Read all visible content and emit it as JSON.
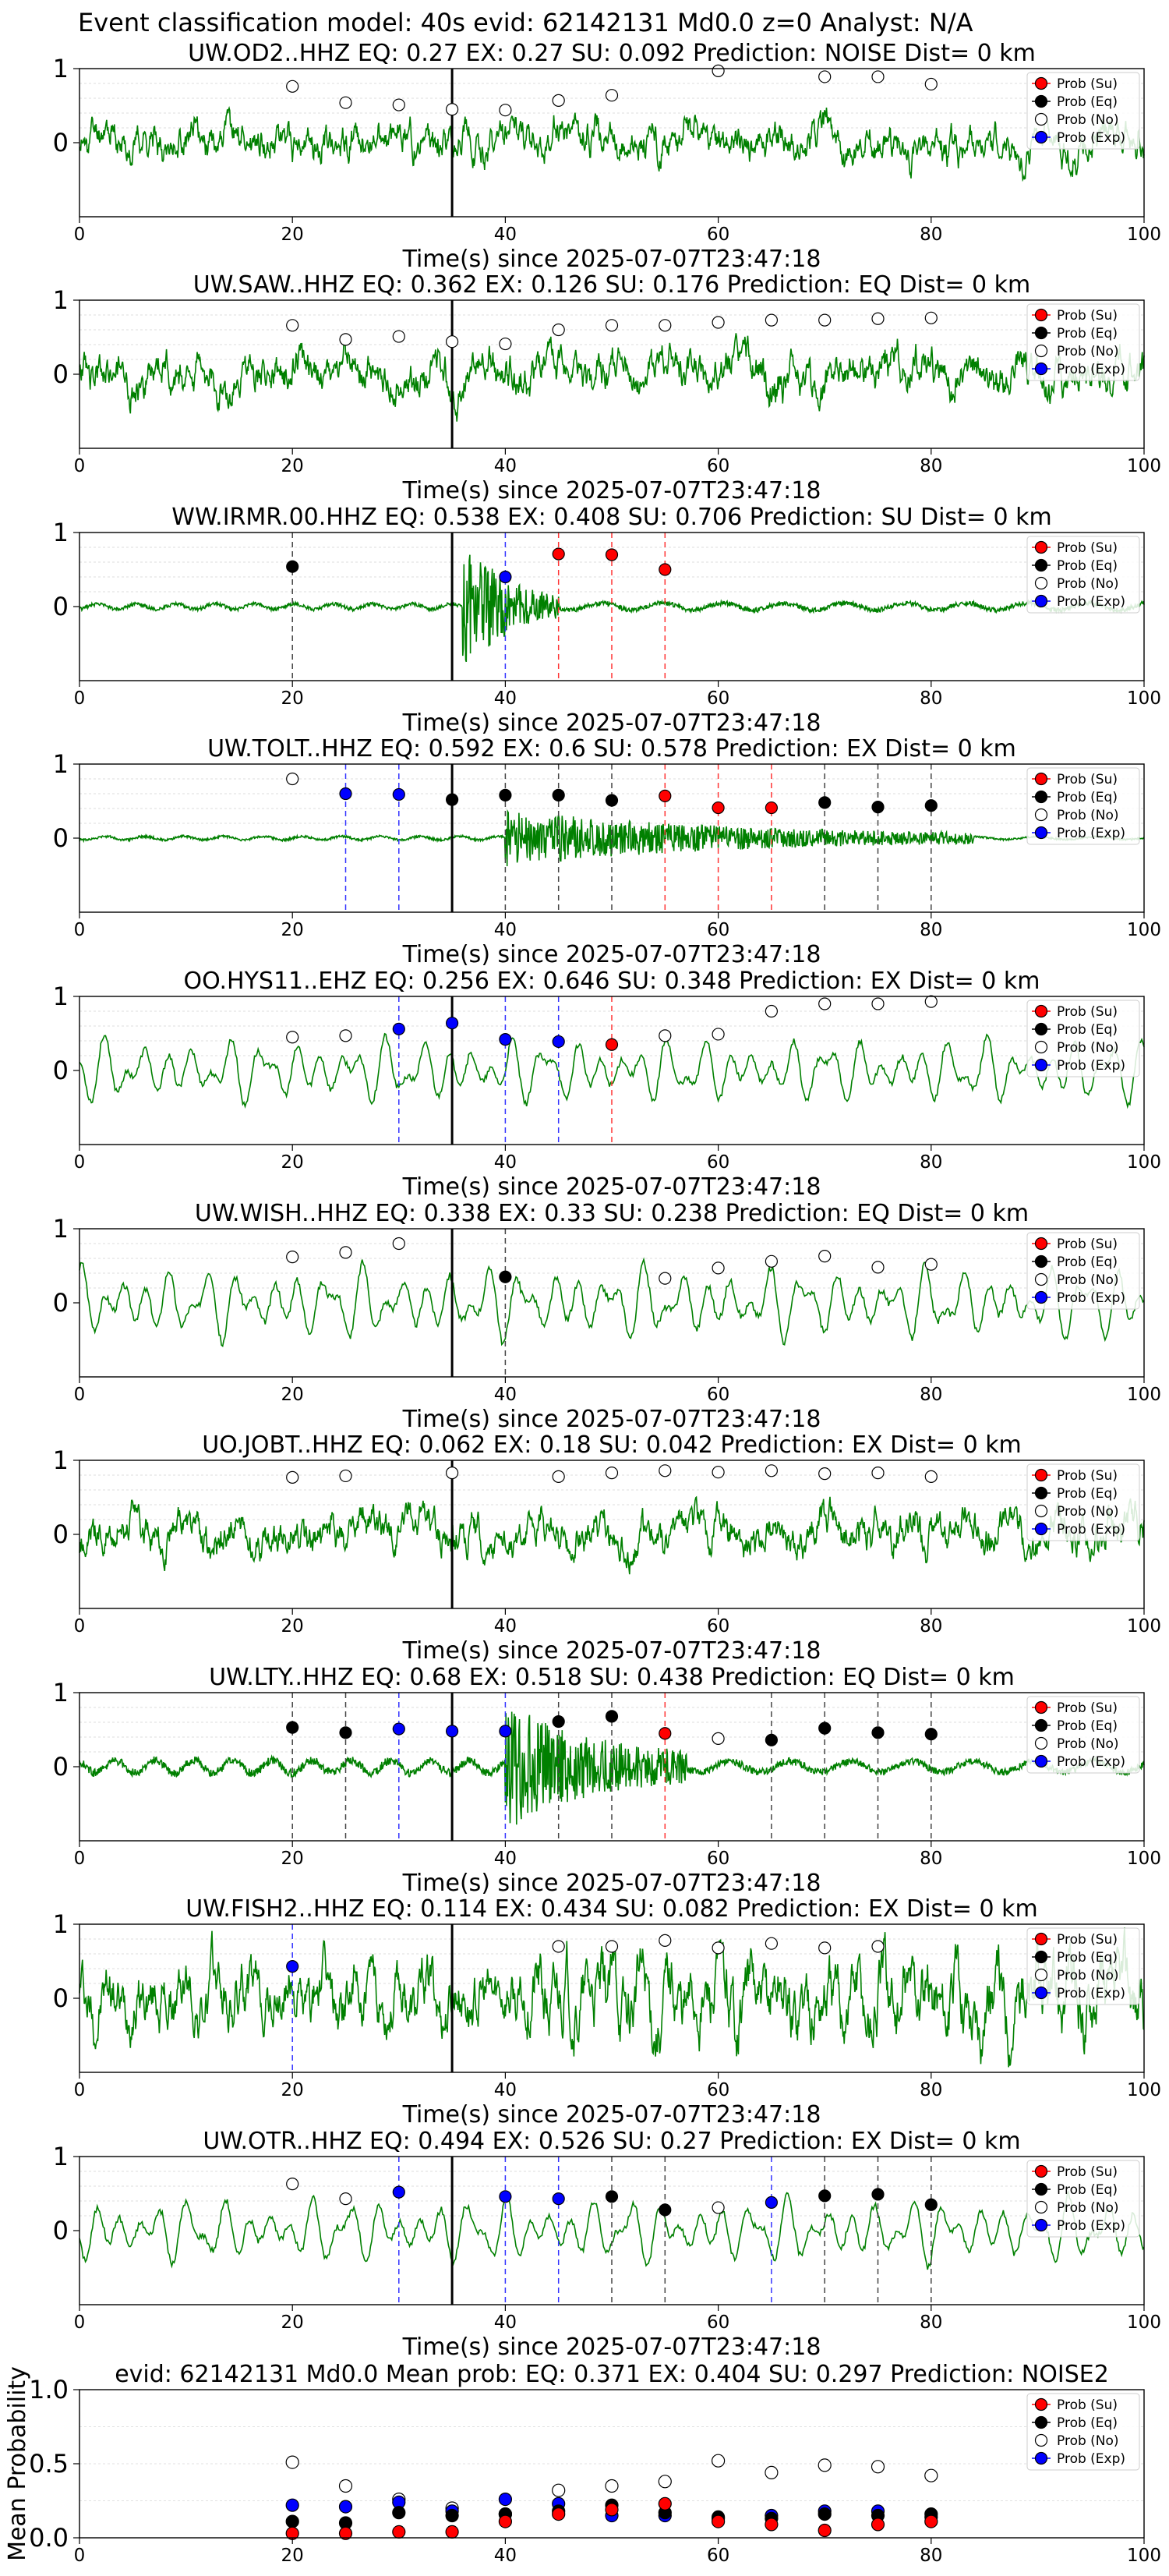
{
  "header": {
    "title": "Event classification model: 40s evid: 62142131 Md0.0 z=0 Analyst: N/A"
  },
  "legend_labels": [
    "Prob (Su)",
    "Prob (Eq)",
    "Prob (No)",
    "Prob (Exp)"
  ],
  "colors": {
    "su": "#ff0000",
    "eq": "#000000",
    "no": "#ffffff",
    "exp": "#0000ff",
    "wave": "#008000"
  },
  "chart_data": [
    {
      "type": "line",
      "title": "UW.OD2..HHZ   EQ: 0.27   EX: 0.27   SU: 0.092   Prediction: NOISE    Dist= 0 km",
      "xlabel": "Time(s) since 2025-07-07T23:47:18",
      "xlim": [
        0,
        100
      ],
      "ylim": [
        -1,
        1
      ],
      "xticks": [
        "0",
        "20",
        "40",
        "60",
        "80",
        "100"
      ],
      "yticks": [
        "1",
        "0"
      ],
      "onset_line": 35,
      "wave": {
        "amp": 0.38,
        "style": "noise",
        "seed": 11
      },
      "markers": [
        {
          "t": 20,
          "p": 0.76,
          "cls": "no"
        },
        {
          "t": 25,
          "p": 0.54,
          "cls": "no"
        },
        {
          "t": 30,
          "p": 0.51,
          "cls": "no"
        },
        {
          "t": 35,
          "p": 0.45,
          "cls": "no"
        },
        {
          "t": 40,
          "p": 0.44,
          "cls": "no"
        },
        {
          "t": 45,
          "p": 0.57,
          "cls": "no"
        },
        {
          "t": 50,
          "p": 0.64,
          "cls": "no"
        },
        {
          "t": 60,
          "p": 0.97,
          "cls": "no"
        },
        {
          "t": 70,
          "p": 0.89,
          "cls": "no"
        },
        {
          "t": 75,
          "p": 0.89,
          "cls": "no"
        },
        {
          "t": 80,
          "p": 0.79,
          "cls": "no"
        }
      ]
    },
    {
      "type": "line",
      "title": "UW.SAW..HHZ   EQ: 0.362  EX: 0.126  SU: 0.176   Prediction: EQ    Dist= 0 km",
      "xlabel": "Time(s) since 2025-07-07T23:47:18",
      "xlim": [
        0,
        100
      ],
      "ylim": [
        -1,
        1
      ],
      "xticks": [
        "0",
        "20",
        "40",
        "60",
        "80",
        "100"
      ],
      "yticks": [
        "1",
        "0"
      ],
      "onset_line": 35,
      "wave": {
        "amp": 0.42,
        "style": "noise",
        "seed": 23
      },
      "markers": [
        {
          "t": 20,
          "p": 0.66,
          "cls": "no"
        },
        {
          "t": 25,
          "p": 0.47,
          "cls": "no"
        },
        {
          "t": 30,
          "p": 0.51,
          "cls": "no"
        },
        {
          "t": 35,
          "p": 0.44,
          "cls": "no"
        },
        {
          "t": 40,
          "p": 0.41,
          "cls": "no"
        },
        {
          "t": 45,
          "p": 0.6,
          "cls": "no"
        },
        {
          "t": 50,
          "p": 0.66,
          "cls": "no"
        },
        {
          "t": 55,
          "p": 0.66,
          "cls": "no"
        },
        {
          "t": 60,
          "p": 0.7,
          "cls": "no"
        },
        {
          "t": 65,
          "p": 0.73,
          "cls": "no"
        },
        {
          "t": 70,
          "p": 0.73,
          "cls": "no"
        },
        {
          "t": 75,
          "p": 0.75,
          "cls": "no"
        },
        {
          "t": 80,
          "p": 0.76,
          "cls": "no"
        }
      ]
    },
    {
      "type": "line",
      "title": "WW.IRMR.00.HHZ   EQ: 0.538  EX: 0.408  SU: 0.706   Prediction: SU    Dist= 0 km",
      "xlabel": "Time(s) since 2025-07-07T23:47:18",
      "xlim": [
        0,
        100
      ],
      "ylim": [
        -1,
        1
      ],
      "xticks": [
        "0",
        "20",
        "40",
        "60",
        "80",
        "100"
      ],
      "yticks": [
        "1",
        "0"
      ],
      "onset_line": 35,
      "wave": {
        "amp": 0.06,
        "style": "burst",
        "seed": 37,
        "burst_start": 36,
        "burst_end": 45,
        "burst_amp": 0.9,
        "late_amp": 0.08
      },
      "markers": [
        {
          "t": 20,
          "p": 0.54,
          "cls": "eq",
          "vline": "eq"
        },
        {
          "t": 40,
          "p": 0.4,
          "cls": "exp",
          "vline": "exp"
        },
        {
          "t": 45,
          "p": 0.71,
          "cls": "su",
          "vline": "su"
        },
        {
          "t": 50,
          "p": 0.7,
          "cls": "su",
          "vline": "su"
        },
        {
          "t": 55,
          "p": 0.5,
          "cls": "su",
          "vline": "su"
        }
      ]
    },
    {
      "type": "line",
      "title": "UW.TOLT..HHZ   EQ: 0.592  EX: 0.6  SU: 0.578   Prediction: EX    Dist= 0 km",
      "xlabel": "Time(s) since 2025-07-07T23:47:18",
      "xlim": [
        0,
        100
      ],
      "ylim": [
        -1,
        1
      ],
      "xticks": [
        "0",
        "20",
        "40",
        "60",
        "80",
        "100"
      ],
      "yticks": [
        "1",
        "0"
      ],
      "onset_line": 35,
      "wave": {
        "amp": 0.04,
        "style": "burst",
        "seed": 41,
        "burst_start": 40,
        "burst_end": 84,
        "burst_amp": 0.35,
        "late_amp": 0.03
      },
      "markers": [
        {
          "t": 20,
          "p": 0.8,
          "cls": "no"
        },
        {
          "t": 25,
          "p": 0.6,
          "cls": "exp",
          "vline": "exp"
        },
        {
          "t": 30,
          "p": 0.59,
          "cls": "exp",
          "vline": "exp"
        },
        {
          "t": 35,
          "p": 0.52,
          "cls": "eq"
        },
        {
          "t": 40,
          "p": 0.58,
          "cls": "eq",
          "vline": "eq"
        },
        {
          "t": 45,
          "p": 0.58,
          "cls": "eq",
          "vline": "eq"
        },
        {
          "t": 50,
          "p": 0.51,
          "cls": "eq",
          "vline": "eq"
        },
        {
          "t": 55,
          "p": 0.57,
          "cls": "su",
          "vline": "su"
        },
        {
          "t": 60,
          "p": 0.41,
          "cls": "su",
          "vline": "su"
        },
        {
          "t": 65,
          "p": 0.41,
          "cls": "su",
          "vline": "su"
        },
        {
          "t": 70,
          "p": 0.48,
          "cls": "eq",
          "vline": "eq"
        },
        {
          "t": 75,
          "p": 0.42,
          "cls": "eq",
          "vline": "eq"
        },
        {
          "t": 80,
          "p": 0.44,
          "cls": "eq",
          "vline": "eq"
        }
      ]
    },
    {
      "type": "line",
      "title": "OO.HYS11..EHZ   EQ: 0.256  EX: 0.646  SU: 0.348   Prediction: EX    Dist= 0 km",
      "xlabel": "Time(s) since 2025-07-07T23:47:18",
      "xlim": [
        0,
        100
      ],
      "ylim": [
        -1,
        1
      ],
      "xticks": [
        "0",
        "20",
        "40",
        "60",
        "80",
        "100"
      ],
      "yticks": [
        "1",
        "0"
      ],
      "onset_line": 35,
      "wave": {
        "amp": 0.55,
        "style": "smooth",
        "seed": 53
      },
      "markers": [
        {
          "t": 20,
          "p": 0.45,
          "cls": "no"
        },
        {
          "t": 25,
          "p": 0.47,
          "cls": "no"
        },
        {
          "t": 30,
          "p": 0.56,
          "cls": "exp",
          "vline": "exp"
        },
        {
          "t": 35,
          "p": 0.64,
          "cls": "exp"
        },
        {
          "t": 40,
          "p": 0.42,
          "cls": "exp",
          "vline": "exp"
        },
        {
          "t": 45,
          "p": 0.39,
          "cls": "exp",
          "vline": "exp"
        },
        {
          "t": 50,
          "p": 0.35,
          "cls": "su",
          "vline": "su"
        },
        {
          "t": 55,
          "p": 0.47,
          "cls": "no"
        },
        {
          "t": 60,
          "p": 0.49,
          "cls": "no"
        },
        {
          "t": 65,
          "p": 0.8,
          "cls": "no"
        },
        {
          "t": 70,
          "p": 0.9,
          "cls": "no"
        },
        {
          "t": 75,
          "p": 0.9,
          "cls": "no"
        },
        {
          "t": 80,
          "p": 0.93,
          "cls": "no"
        }
      ]
    },
    {
      "type": "line",
      "title": "UW.WISH..HHZ   EQ: 0.338  EX: 0.33  SU: 0.238   Prediction: EQ    Dist= 0 km",
      "xlabel": "Time(s) since 2025-07-07T23:47:18",
      "xlim": [
        0,
        100
      ],
      "ylim": [
        -1,
        1
      ],
      "xticks": [
        "0",
        "20",
        "40",
        "60",
        "80",
        "100"
      ],
      "yticks": [
        "1",
        "0"
      ],
      "onset_line": 35,
      "wave": {
        "amp": 0.62,
        "style": "smooth",
        "seed": 67
      },
      "markers": [
        {
          "t": 20,
          "p": 0.62,
          "cls": "no"
        },
        {
          "t": 25,
          "p": 0.68,
          "cls": "no"
        },
        {
          "t": 30,
          "p": 0.8,
          "cls": "no"
        },
        {
          "t": 40,
          "p": 0.35,
          "cls": "eq",
          "vline": "eq"
        },
        {
          "t": 55,
          "p": 0.33,
          "cls": "no"
        },
        {
          "t": 60,
          "p": 0.47,
          "cls": "no"
        },
        {
          "t": 65,
          "p": 0.56,
          "cls": "no"
        },
        {
          "t": 70,
          "p": 0.63,
          "cls": "no"
        },
        {
          "t": 75,
          "p": 0.48,
          "cls": "no"
        },
        {
          "t": 80,
          "p": 0.52,
          "cls": "no"
        }
      ]
    },
    {
      "type": "line",
      "title": "UO.JOBT..HHZ   EQ: 0.062  EX: 0.18  SU: 0.042   Prediction: EX    Dist= 0 km",
      "xlabel": "Time(s) since 2025-07-07T23:47:18",
      "xlim": [
        0,
        100
      ],
      "ylim": [
        -1,
        1
      ],
      "xticks": [
        "0",
        "20",
        "40",
        "60",
        "80",
        "100"
      ],
      "yticks": [
        "1",
        "0"
      ],
      "onset_line": 35,
      "wave": {
        "amp": 0.4,
        "style": "noise",
        "seed": 79
      },
      "markers": [
        {
          "t": 20,
          "p": 0.77,
          "cls": "no"
        },
        {
          "t": 25,
          "p": 0.79,
          "cls": "no"
        },
        {
          "t": 35,
          "p": 0.83,
          "cls": "no"
        },
        {
          "t": 45,
          "p": 0.78,
          "cls": "no"
        },
        {
          "t": 50,
          "p": 0.83,
          "cls": "no"
        },
        {
          "t": 55,
          "p": 0.86,
          "cls": "no"
        },
        {
          "t": 60,
          "p": 0.84,
          "cls": "no"
        },
        {
          "t": 65,
          "p": 0.86,
          "cls": "no"
        },
        {
          "t": 70,
          "p": 0.82,
          "cls": "no"
        },
        {
          "t": 75,
          "p": 0.83,
          "cls": "no"
        },
        {
          "t": 80,
          "p": 0.78,
          "cls": "no"
        }
      ]
    },
    {
      "type": "line",
      "title": "UW.LTY..HHZ   EQ: 0.68  EX: 0.518  SU: 0.438   Prediction: EQ    Dist= 0 km",
      "xlabel": "Time(s) since 2025-07-07T23:47:18",
      "xlim": [
        0,
        100
      ],
      "ylim": [
        -1,
        1
      ],
      "xticks": [
        "0",
        "20",
        "40",
        "60",
        "80",
        "100"
      ],
      "yticks": [
        "1",
        "0"
      ],
      "onset_line": 35,
      "wave": {
        "amp": 0.14,
        "style": "burst",
        "seed": 83,
        "burst_start": 40,
        "burst_end": 57,
        "burst_amp": 0.75,
        "late_amp": 0.12
      },
      "markers": [
        {
          "t": 20,
          "p": 0.53,
          "cls": "eq",
          "vline": "eq"
        },
        {
          "t": 25,
          "p": 0.46,
          "cls": "eq",
          "vline": "eq"
        },
        {
          "t": 30,
          "p": 0.51,
          "cls": "exp",
          "vline": "exp"
        },
        {
          "t": 35,
          "p": 0.48,
          "cls": "exp"
        },
        {
          "t": 40,
          "p": 0.48,
          "cls": "exp",
          "vline": "exp"
        },
        {
          "t": 45,
          "p": 0.61,
          "cls": "eq",
          "vline": "eq"
        },
        {
          "t": 50,
          "p": 0.68,
          "cls": "eq",
          "vline": "eq"
        },
        {
          "t": 55,
          "p": 0.45,
          "cls": "su",
          "vline": "su"
        },
        {
          "t": 60,
          "p": 0.38,
          "cls": "no"
        },
        {
          "t": 65,
          "p": 0.36,
          "cls": "eq",
          "vline": "eq"
        },
        {
          "t": 70,
          "p": 0.52,
          "cls": "eq",
          "vline": "eq"
        },
        {
          "t": 75,
          "p": 0.46,
          "cls": "eq",
          "vline": "eq"
        },
        {
          "t": 80,
          "p": 0.44,
          "cls": "eq",
          "vline": "eq"
        }
      ]
    },
    {
      "type": "line",
      "title": "UW.FISH2..HHZ   EQ: 0.114  EX: 0.434  SU: 0.082   Prediction: EX    Dist= 0 km",
      "xlabel": "Time(s) since 2025-07-07T23:47:18",
      "xlim": [
        0,
        100
      ],
      "ylim": [
        -1,
        1
      ],
      "xticks": [
        "0",
        "20",
        "40",
        "60",
        "80",
        "100"
      ],
      "yticks": [
        "1",
        "0"
      ],
      "onset_line": 35,
      "wave": {
        "amp": 0.5,
        "style": "dense",
        "seed": 97
      },
      "markers": [
        {
          "t": 20,
          "p": 0.43,
          "cls": "exp",
          "vline": "exp"
        },
        {
          "t": 45,
          "p": 0.7,
          "cls": "no"
        },
        {
          "t": 50,
          "p": 0.7,
          "cls": "no"
        },
        {
          "t": 55,
          "p": 0.78,
          "cls": "no"
        },
        {
          "t": 60,
          "p": 0.68,
          "cls": "no"
        },
        {
          "t": 65,
          "p": 0.74,
          "cls": "no"
        },
        {
          "t": 70,
          "p": 0.68,
          "cls": "no"
        },
        {
          "t": 75,
          "p": 0.7,
          "cls": "no"
        }
      ]
    },
    {
      "type": "line",
      "title": "UW.OTR..HHZ   EQ: 0.494  EX: 0.526  SU: 0.27   Prediction: EX    Dist= 0 km",
      "xlabel": "Time(s) since 2025-07-07T23:47:18",
      "xlim": [
        0,
        100
      ],
      "ylim": [
        -1,
        1
      ],
      "xticks": [
        "0",
        "20",
        "40",
        "60",
        "80",
        "100"
      ],
      "yticks": [
        "1",
        "0"
      ],
      "onset_line": 35,
      "wave": {
        "amp": 0.55,
        "style": "smooth",
        "seed": 101
      },
      "markers": [
        {
          "t": 20,
          "p": 0.63,
          "cls": "no"
        },
        {
          "t": 25,
          "p": 0.43,
          "cls": "no"
        },
        {
          "t": 30,
          "p": 0.52,
          "cls": "exp",
          "vline": "exp"
        },
        {
          "t": 40,
          "p": 0.46,
          "cls": "exp",
          "vline": "exp"
        },
        {
          "t": 45,
          "p": 0.43,
          "cls": "exp",
          "vline": "exp"
        },
        {
          "t": 50,
          "p": 0.46,
          "cls": "eq",
          "vline": "eq"
        },
        {
          "t": 55,
          "p": 0.28,
          "cls": "eq",
          "vline": "eq"
        },
        {
          "t": 60,
          "p": 0.31,
          "cls": "no"
        },
        {
          "t": 65,
          "p": 0.38,
          "cls": "exp",
          "vline": "exp"
        },
        {
          "t": 70,
          "p": 0.47,
          "cls": "eq",
          "vline": "eq"
        },
        {
          "t": 75,
          "p": 0.49,
          "cls": "eq",
          "vline": "eq"
        },
        {
          "t": 80,
          "p": 0.35,
          "cls": "eq",
          "vline": "eq"
        }
      ]
    },
    {
      "type": "scatter",
      "title": "evid: 62142131  Md0.0   Mean prob:   EQ: 0.371  EX: 0.404  SU: 0.297   Prediction: NOISE2",
      "ylabel": "Mean Probability",
      "xlim": [
        0,
        100
      ],
      "ylim": [
        0,
        1
      ],
      "xticks": [
        "0",
        "20",
        "40",
        "60",
        "80",
        "100"
      ],
      "yticks": [
        "1.0",
        "0.5",
        "0.0"
      ],
      "x": [
        20,
        25,
        30,
        35,
        40,
        45,
        50,
        55,
        60,
        65,
        70,
        75,
        80
      ],
      "series": [
        {
          "name": "Prob (Su)",
          "cls": "su",
          "values": [
            0.03,
            0.03,
            0.04,
            0.04,
            0.11,
            0.16,
            0.19,
            0.23,
            0.11,
            0.09,
            0.05,
            0.09,
            0.11
          ]
        },
        {
          "name": "Prob (Eq)",
          "cls": "eq",
          "values": [
            0.11,
            0.1,
            0.17,
            0.15,
            0.16,
            0.18,
            0.22,
            0.17,
            0.14,
            0.13,
            0.16,
            0.15,
            0.16
          ]
        },
        {
          "name": "Prob (No)",
          "cls": "no",
          "values": [
            0.51,
            0.35,
            0.26,
            0.2,
            0.16,
            0.32,
            0.35,
            0.38,
            0.52,
            0.44,
            0.49,
            0.48,
            0.42
          ]
        },
        {
          "name": "Prob (Exp)",
          "cls": "exp",
          "values": [
            0.22,
            0.21,
            0.24,
            0.18,
            0.26,
            0.23,
            0.15,
            0.15,
            0.13,
            0.15,
            0.18,
            0.18,
            0.14
          ]
        }
      ]
    }
  ]
}
